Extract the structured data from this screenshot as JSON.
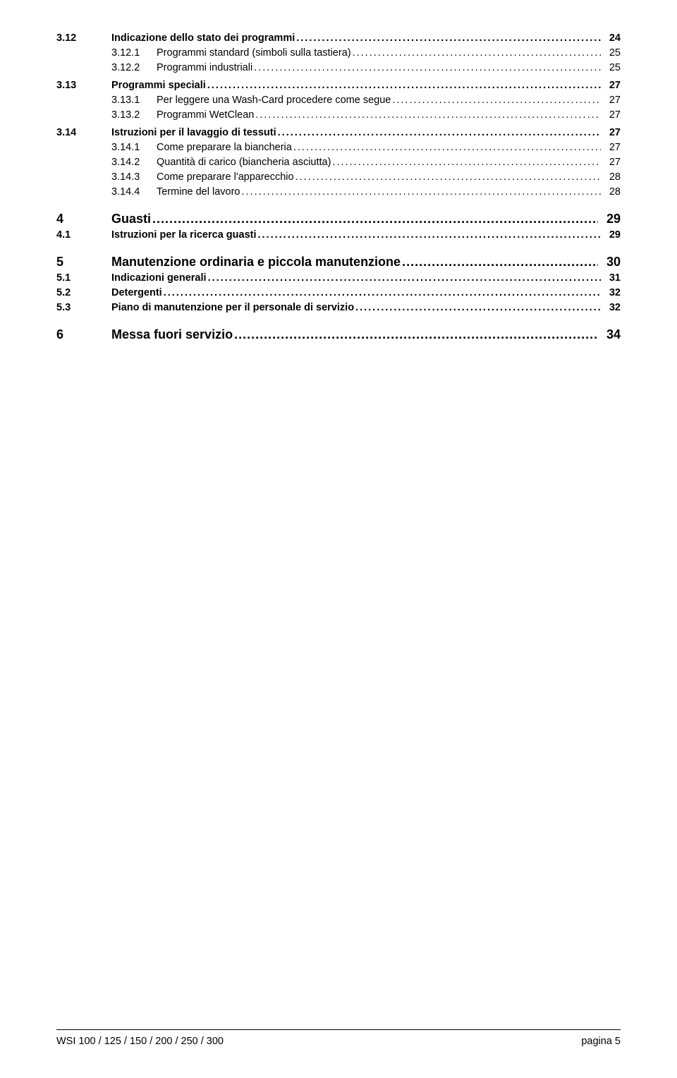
{
  "toc": [
    {
      "level": 2,
      "num": "3.12",
      "title": "Indicazione dello stato dei programmi",
      "page": "24"
    },
    {
      "level": 3,
      "num": "3.12.1",
      "title": "Programmi standard (simboli sulla tastiera)",
      "page": "25"
    },
    {
      "level": 3,
      "num": "3.12.2",
      "title": "Programmi industriali",
      "page": "25"
    },
    {
      "level": 2,
      "num": "3.13",
      "title": "Programmi speciali",
      "page": "27"
    },
    {
      "level": 3,
      "num": "3.13.1",
      "title": "Per leggere una Wash-Card procedere come segue",
      "page": "27"
    },
    {
      "level": 3,
      "num": "3.13.2",
      "title": "Programmi WetClean",
      "page": "27"
    },
    {
      "level": 2,
      "num": "3.14",
      "title": "Istruzioni per il lavaggio di tessuti",
      "page": "27"
    },
    {
      "level": 3,
      "num": "3.14.1",
      "title": "Come preparare la biancheria",
      "page": "27"
    },
    {
      "level": 3,
      "num": "3.14.2",
      "title": "Quantità di carico (biancheria asciutta)",
      "page": "27"
    },
    {
      "level": 3,
      "num": "3.14.3",
      "title": "Come preparare l'apparecchio",
      "page": "28"
    },
    {
      "level": 3,
      "num": "3.14.4",
      "title": "Termine del lavoro",
      "page": "28"
    },
    {
      "level": 1,
      "num": "4",
      "title": "Guasti",
      "page": "29"
    },
    {
      "level": 2,
      "num": "4.1",
      "title": "Istruzioni per la ricerca guasti",
      "page": "29"
    },
    {
      "level": 1,
      "num": "5",
      "title": "Manutenzione ordinaria e piccola manutenzione",
      "page": "30"
    },
    {
      "level": 2,
      "num": "5.1",
      "title": "Indicazioni generali",
      "page": "31"
    },
    {
      "level": 2,
      "num": "5.2",
      "title": "Detergenti",
      "page": "32"
    },
    {
      "level": 2,
      "num": "5.3",
      "title": "Piano di manutenzione per il personale di servizio",
      "page": "32"
    },
    {
      "level": 1,
      "num": "6",
      "title": "Messa fuori servizio",
      "page": "34"
    }
  ],
  "footer": {
    "left": "WSI 100 / 125 / 150 / 200 / 250 / 300",
    "right": "pagina 5"
  }
}
